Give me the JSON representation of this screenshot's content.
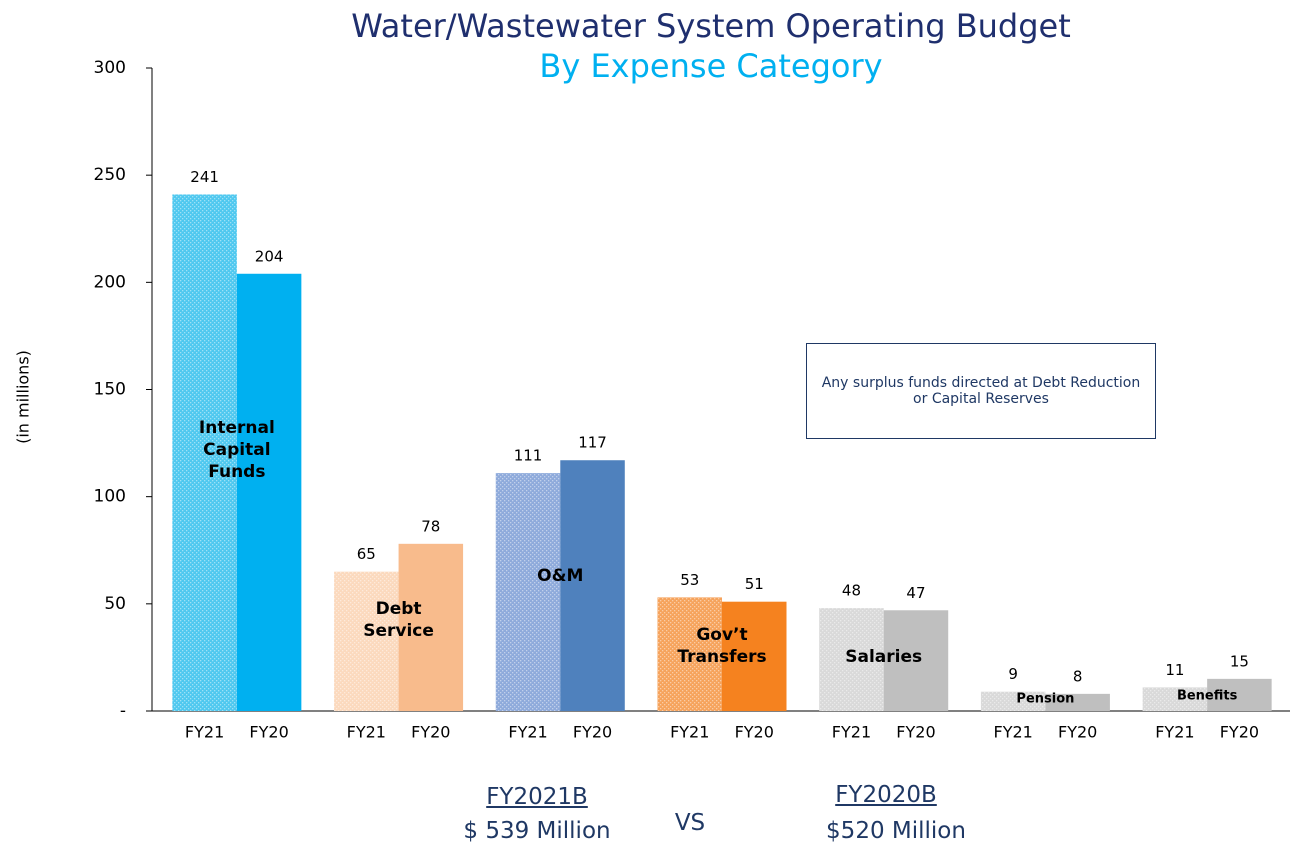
{
  "chart_data": {
    "type": "bar",
    "title": "Water/Wastewater System Operating Budget",
    "subtitle": "By Expense Category",
    "y_label": "(in millions)",
    "categories": [
      "Internal Capital Funds",
      "Debt Service",
      "O&M",
      "Gov’t Transfers",
      "Salaries",
      "Pension",
      "Benefits"
    ],
    "series": [
      {
        "name": "FY21",
        "values": [
          241,
          65,
          111,
          53,
          48,
          9,
          11
        ],
        "colors": [
          "#4fc8ef",
          "#fbd9bd",
          "#8eaadb",
          "#f6a35c",
          "#d9d9d9",
          "#d9d9d9",
          "#d9d9d9"
        ]
      },
      {
        "name": "FY20",
        "values": [
          204,
          78,
          117,
          51,
          47,
          8,
          15
        ],
        "colors": [
          "#00b0f0",
          "#f8bb8c",
          "#4f81bd",
          "#f5821f",
          "#bfbfbf",
          "#bfbfbf",
          "#bfbfbf"
        ]
      }
    ],
    "ylim": [
      0,
      300
    ],
    "yticks": [
      {
        "value": 0,
        "label": "-"
      },
      50,
      100,
      150,
      200,
      250,
      300
    ],
    "annotation": "Any surplus funds directed at Debt Reduction or Capital Reserves",
    "footer": {
      "left_title": "FY2021B",
      "left_value": "$ 539 Million",
      "middle": "VS",
      "right_title": "FY2020B",
      "right_value": "$520 Million"
    }
  }
}
